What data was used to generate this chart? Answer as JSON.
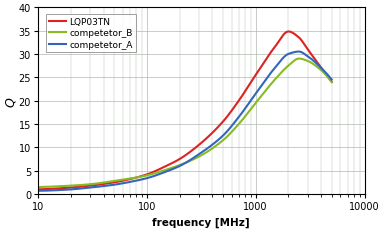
{
  "title": "",
  "xlabel": "frequency [MHz]",
  "ylabel": "Q",
  "xlim": [
    10,
    10000
  ],
  "ylim": [
    0,
    40
  ],
  "yticks": [
    0,
    5,
    10,
    15,
    20,
    25,
    30,
    35,
    40
  ],
  "xticks": [
    10,
    100,
    1000,
    10000
  ],
  "xtick_labels": [
    "10",
    "100",
    "1000",
    "10000"
  ],
  "background_color": "#ffffff",
  "grid_color": "#b0b8b0",
  "series": [
    {
      "label": "LQP03TN",
      "color": "#dd2222"
    },
    {
      "label": "competetor_B",
      "color": "#88bb22"
    },
    {
      "label": "competetor_A",
      "color": "#3366bb"
    }
  ],
  "lqp_x": [
    10,
    20,
    30,
    50,
    70,
    100,
    150,
    200,
    300,
    500,
    700,
    1000,
    1500,
    2000,
    2500,
    3000,
    4000,
    5000
  ],
  "lqp_y": [
    1.0,
    1.4,
    1.8,
    2.5,
    3.2,
    4.2,
    6.0,
    7.5,
    10.5,
    15.5,
    20.0,
    25.5,
    31.5,
    34.8,
    33.5,
    31.0,
    27.0,
    24.0
  ],
  "compB_x": [
    10,
    20,
    30,
    50,
    70,
    100,
    150,
    200,
    300,
    500,
    700,
    1000,
    1500,
    2000,
    2500,
    3000,
    4000,
    5000
  ],
  "compB_y": [
    1.5,
    1.8,
    2.1,
    2.8,
    3.3,
    4.0,
    5.2,
    6.2,
    8.0,
    11.5,
    15.0,
    19.5,
    24.5,
    27.5,
    29.0,
    28.5,
    26.5,
    24.0
  ],
  "compA_x": [
    10,
    20,
    30,
    50,
    70,
    100,
    150,
    200,
    300,
    500,
    700,
    1000,
    1500,
    2000,
    2500,
    3000,
    4000,
    5000
  ],
  "compA_y": [
    0.7,
    1.0,
    1.4,
    2.0,
    2.6,
    3.4,
    4.8,
    6.0,
    8.5,
    12.5,
    16.5,
    21.5,
    27.0,
    30.0,
    30.5,
    29.5,
    27.0,
    24.5
  ]
}
